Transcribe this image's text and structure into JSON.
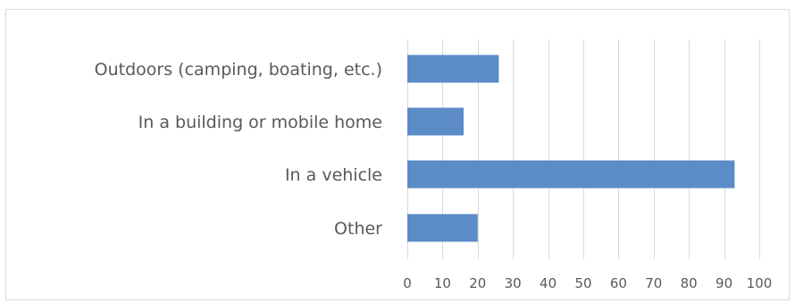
{
  "chart_data": {
    "type": "bar",
    "orientation": "horizontal",
    "categories": [
      "Outdoors (camping, boating, etc.)",
      "In a building or mobile home",
      "In a vehicle",
      "Other"
    ],
    "values": [
      26,
      16,
      93,
      20
    ],
    "title": "",
    "xlabel": "",
    "ylabel": "",
    "xlim": [
      0,
      100
    ],
    "xticks": [
      0,
      10,
      20,
      30,
      40,
      50,
      60,
      70,
      80,
      90,
      100
    ],
    "grid": "vertical",
    "legend": "none",
    "bar_color": "#5b8cc8"
  }
}
